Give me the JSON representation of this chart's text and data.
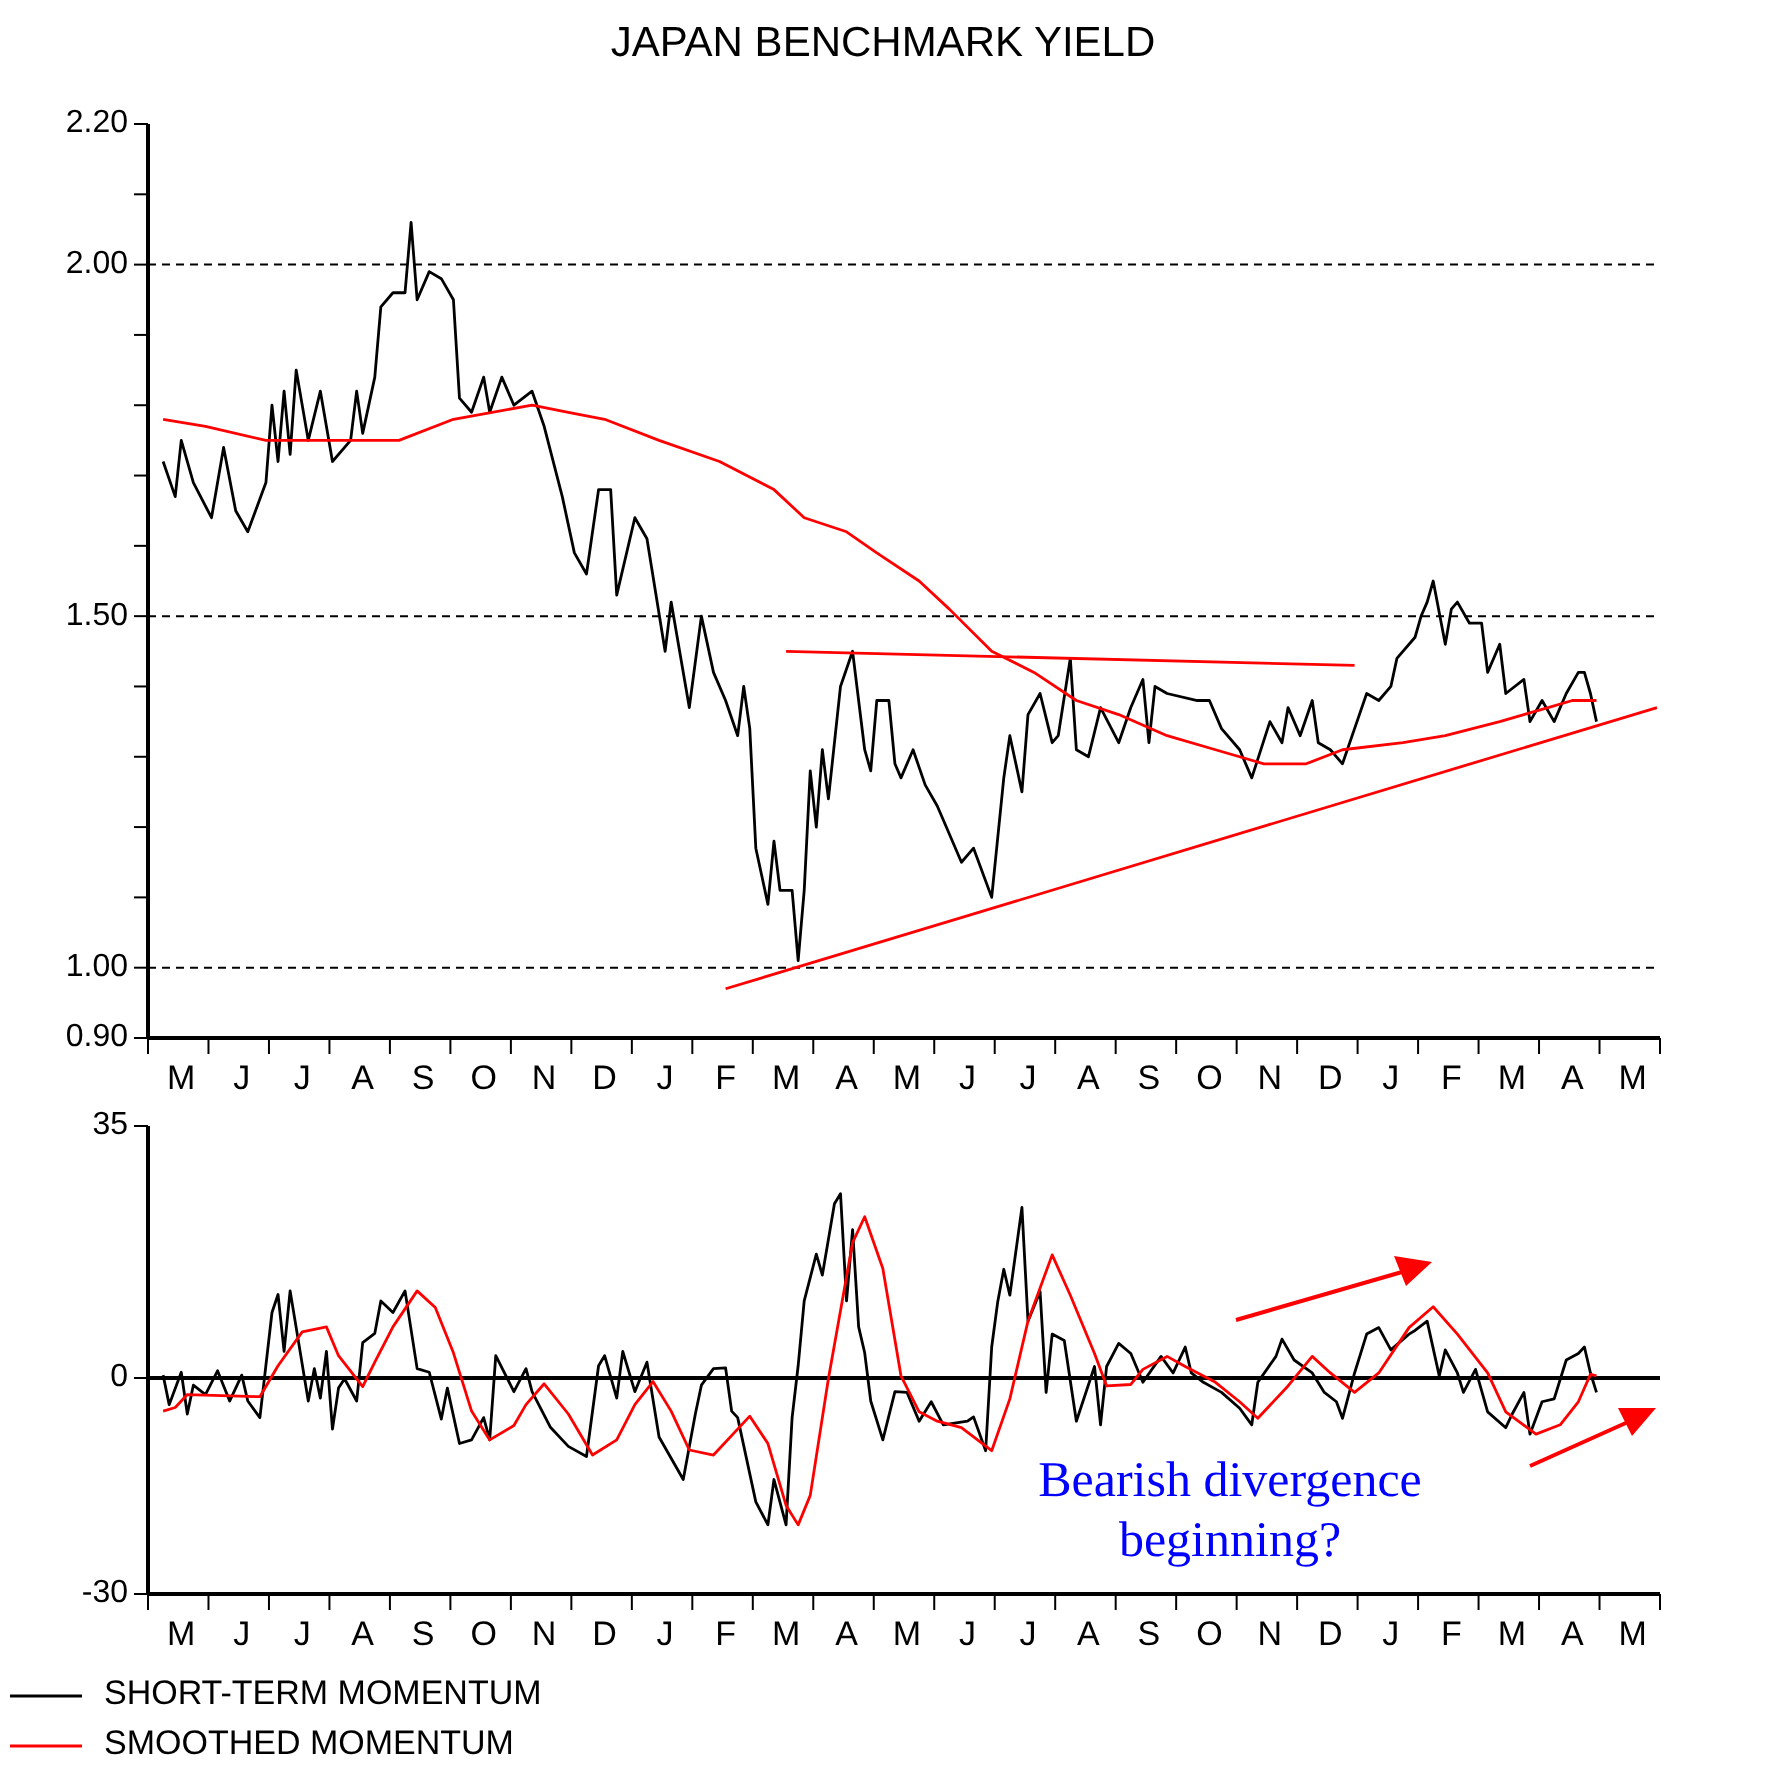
{
  "chart_data": [
    {
      "type": "line",
      "title": "JAPAN BENCHMARK YIELD",
      "marker": "none",
      "categories": [
        null,
        null,
        null,
        null,
        null,
        "M",
        null,
        null,
        null,
        null,
        null,
        null,
        null,
        null,
        null,
        "J",
        null,
        null,
        null,
        null,
        null,
        null,
        null,
        null,
        null,
        "J",
        null,
        null,
        null,
        null,
        null,
        null,
        null,
        null,
        null,
        "A",
        null,
        null,
        null,
        null,
        null,
        null,
        null,
        null,
        null,
        "S",
        null,
        null,
        null,
        null,
        null,
        null,
        null,
        null,
        null,
        "O",
        null,
        null,
        null,
        null,
        null,
        null,
        null,
        null,
        null,
        "N",
        null,
        null,
        null,
        null,
        null,
        null,
        null,
        null,
        null,
        "D",
        null,
        null,
        null,
        null,
        null,
        null,
        null,
        null,
        null,
        "J",
        null,
        null,
        null,
        null,
        null,
        null,
        null,
        null,
        null,
        "F",
        null,
        null,
        null,
        null,
        null,
        null,
        null,
        null,
        null,
        "M",
        null,
        null,
        null,
        null,
        null,
        null,
        null,
        null,
        null,
        "A",
        null,
        null,
        null,
        null,
        null,
        null,
        null,
        null,
        null,
        "M",
        null,
        null,
        null,
        null,
        null,
        null,
        null,
        null,
        null,
        "J",
        null,
        null,
        null,
        null,
        null,
        null,
        null,
        null,
        null,
        "J",
        null,
        null,
        null,
        null,
        null,
        null,
        null,
        null,
        null,
        "A",
        null,
        null,
        null,
        null,
        null,
        null,
        null,
        null,
        null,
        "S",
        null,
        null,
        null,
        null,
        null,
        null,
        null,
        null,
        null,
        "O",
        null,
        null,
        null,
        null,
        null,
        null,
        null,
        null,
        null,
        "N",
        null,
        null,
        null,
        null,
        null,
        null,
        null,
        null,
        null,
        "D",
        null,
        null,
        null,
        null,
        null,
        null,
        null,
        null,
        null,
        "J",
        null,
        null,
        null,
        null,
        null,
        null,
        null,
        null,
        null,
        "F",
        null,
        null,
        null,
        null,
        null,
        null,
        null,
        null,
        null,
        "M",
        null,
        null,
        null,
        null,
        null,
        null,
        null,
        null,
        null,
        "A",
        null,
        null,
        null,
        null,
        null,
        null,
        null,
        null,
        null,
        "M",
        null,
        null,
        null,
        null
      ],
      "ylim": [
        0.9,
        2.2
      ],
      "yticks": [
        {
          "value": 0.9,
          "label": "0.90"
        },
        {
          "value": 1.0,
          "label": "1.00"
        },
        {
          "value": 1.1,
          "label": null
        },
        {
          "value": 1.2,
          "label": null
        },
        {
          "value": 1.3,
          "label": null
        },
        {
          "value": 1.4,
          "label": null
        },
        {
          "value": 1.5,
          "label": "1.50"
        },
        {
          "value": 1.6,
          "label": null
        },
        {
          "value": 1.7,
          "label": null
        },
        {
          "value": 1.8,
          "label": null
        },
        {
          "value": 1.9,
          "label": null
        },
        {
          "value": 2.0,
          "label": "2.00"
        },
        {
          "value": 2.1,
          "label": null
        },
        {
          "value": 2.2,
          "label": "2.20"
        }
      ],
      "ref_lines": [
        {
          "axis": "y",
          "value": 1.0,
          "color": "#000000",
          "line_style": "dashed"
        },
        {
          "axis": "y",
          "value": 1.5,
          "color": "#000000",
          "line_style": "dashed"
        },
        {
          "axis": "y",
          "value": 2.0,
          "color": "#000000",
          "line_style": "dashed"
        }
      ],
      "series": [
        {
          "color": "#000000",
          "values": [
            null,
            null,
            1.72,
            null,
            1.67,
            1.75,
            null,
            1.69,
            null,
            null,
            1.64,
            null,
            1.74,
            null,
            1.65,
            null,
            1.62,
            null,
            null,
            1.69,
            1.8,
            1.72,
            1.82,
            1.73,
            1.85,
            null,
            1.75,
            null,
            1.82,
            null,
            1.72,
            null,
            null,
            1.75,
            1.82,
            1.76,
            null,
            1.84,
            1.94,
            null,
            1.96,
            null,
            1.96,
            2.06,
            1.95,
            null,
            1.99,
            null,
            1.98,
            null,
            1.95,
            1.81,
            null,
            1.79,
            null,
            1.84,
            1.79,
            null,
            1.84,
            null,
            1.8,
            null,
            null,
            1.82,
            null,
            1.77,
            null,
            null,
            1.67,
            null,
            1.59,
            null,
            1.56,
            null,
            1.68,
            null,
            1.68,
            1.53,
            null,
            null,
            1.64,
            null,
            1.61,
            null,
            null,
            1.45,
            1.52,
            null,
            null,
            1.37,
            null,
            1.5,
            null,
            1.42,
            null,
            1.38,
            null,
            1.33,
            1.4,
            1.34,
            1.17,
            null,
            1.09,
            1.18,
            1.11,
            null,
            1.11,
            1.01,
            1.11,
            1.28,
            1.2,
            1.31,
            1.24,
            null,
            1.4,
            null,
            1.45,
            null,
            1.31,
            1.28,
            1.38,
            null,
            1.38,
            1.29,
            1.27,
            null,
            1.31,
            null,
            1.26,
            null,
            1.23,
            1.21,
            null,
            null,
            1.15,
            null,
            1.17,
            null,
            null,
            1.1,
            null,
            1.27,
            1.33,
            null,
            1.25,
            1.36,
            null,
            1.39,
            null,
            1.32,
            1.33,
            null,
            1.44,
            1.31,
            null,
            1.3,
            null,
            1.37,
            null,
            null,
            1.32,
            null,
            1.37,
            null,
            1.41,
            1.32,
            1.4,
            null,
            1.39,
            null,
            null,
            null,
            null,
            1.38,
            null,
            1.38,
            null,
            1.34,
            null,
            null,
            1.31,
            null,
            1.27,
            null,
            null,
            1.35,
            null,
            1.32,
            1.37,
            null,
            1.33,
            null,
            1.38,
            1.32,
            null,
            1.31,
            null,
            1.29,
            null,
            1.34,
            null,
            1.39,
            null,
            1.38,
            null,
            1.4,
            1.44,
            null,
            null,
            1.47,
            1.5,
            1.52,
            1.55,
            null,
            1.46,
            1.51,
            1.52,
            null,
            1.49,
            null,
            1.49,
            1.42,
            null,
            1.46,
            1.39,
            null,
            null,
            1.41,
            1.35,
            null,
            1.38,
            null,
            1.35,
            null,
            1.39,
            null,
            1.42,
            1.42,
            1.39,
            1.35,
            null,
            null,
            null,
            null,
            null,
            null,
            null,
            null,
            null,
            null
          ]
        },
        {
          "color": "#ff0000",
          "values": [
            null,
            null,
            1.78,
            null,
            null,
            null,
            null,
            null,
            null,
            1.77,
            null,
            null,
            null,
            null,
            null,
            null,
            null,
            null,
            null,
            1.75,
            null,
            null,
            null,
            null,
            null,
            1.75,
            null,
            null,
            null,
            null,
            null,
            null,
            null,
            null,
            null,
            null,
            null,
            null,
            null,
            null,
            null,
            1.75,
            null,
            null,
            null,
            null,
            null,
            null,
            null,
            null,
            1.78,
            null,
            null,
            null,
            null,
            null,
            null,
            null,
            null,
            null,
            null,
            null,
            null,
            1.8,
            null,
            null,
            null,
            null,
            null,
            1.79,
            null,
            null,
            null,
            null,
            null,
            1.78,
            null,
            null,
            null,
            null,
            null,
            null,
            null,
            null,
            1.75,
            null,
            null,
            null,
            null,
            null,
            null,
            null,
            null,
            null,
            1.72,
            null,
            null,
            null,
            null,
            null,
            null,
            null,
            null,
            1.68,
            null,
            null,
            null,
            null,
            1.64,
            null,
            null,
            null,
            null,
            null,
            null,
            1.62,
            null,
            null,
            null,
            null,
            1.59,
            null,
            null,
            null,
            null,
            null,
            null,
            1.55,
            null,
            null,
            null,
            null,
            1.51,
            null,
            null,
            null,
            null,
            null,
            null,
            1.45,
            null,
            null,
            null,
            null,
            null,
            null,
            1.42,
            null,
            null,
            null,
            null,
            null,
            null,
            1.38,
            null,
            null,
            null,
            null,
            null,
            null,
            1.36,
            null,
            null,
            null,
            null,
            null,
            null,
            null,
            1.33,
            null,
            null,
            null,
            null,
            null,
            null,
            null,
            1.31,
            null,
            null,
            null,
            null,
            null,
            null,
            null,
            1.29,
            null,
            null,
            null,
            null,
            null,
            null,
            1.29,
            null,
            null,
            null,
            null,
            null,
            1.31,
            null,
            null,
            null,
            null,
            null,
            null,
            null,
            null,
            null,
            1.32,
            null,
            null,
            null,
            null,
            null,
            null,
            1.33,
            null,
            null,
            null,
            null,
            null,
            null,
            null,
            null,
            1.35,
            null,
            null,
            null,
            null,
            null,
            null,
            null,
            1.37,
            null,
            null,
            null,
            1.38,
            null,
            null,
            null,
            1.38,
            null,
            null,
            null,
            null,
            null,
            null,
            null,
            null,
            null,
            null
          ]
        },
        {
          "color": "#ff0000",
          "values": [
            null,
            null,
            null,
            null,
            null,
            null,
            null,
            null,
            null,
            null,
            null,
            null,
            null,
            null,
            null,
            null,
            null,
            null,
            null,
            null,
            null,
            null,
            null,
            null,
            null,
            null,
            null,
            null,
            null,
            null,
            null,
            null,
            null,
            null,
            null,
            null,
            null,
            null,
            null,
            null,
            null,
            null,
            null,
            null,
            null,
            null,
            null,
            null,
            null,
            null,
            null,
            null,
            null,
            null,
            null,
            null,
            null,
            null,
            null,
            null,
            null,
            null,
            null,
            null,
            null,
            null,
            null,
            null,
            null,
            null,
            null,
            null,
            null,
            null,
            null,
            null,
            null,
            null,
            null,
            null,
            null,
            null,
            null,
            null,
            null,
            null,
            null,
            null,
            null,
            null,
            null,
            null,
            null,
            null,
            null,
            null,
            null,
            null,
            null,
            null,
            null,
            null,
            null,
            null,
            null,
            1.45,
            null,
            null,
            null,
            null,
            null,
            null,
            null,
            null,
            null,
            null,
            null,
            null,
            null,
            null,
            null,
            null,
            null,
            null,
            null,
            null,
            null,
            null,
            null,
            null,
            null,
            null,
            null,
            null,
            null,
            null,
            null,
            null,
            null,
            null,
            null,
            null,
            null,
            null,
            null,
            null,
            null,
            null,
            null,
            null,
            null,
            null,
            null,
            null,
            null,
            null,
            null,
            null,
            null,
            null,
            null,
            null,
            null,
            null,
            null,
            null,
            null,
            null,
            null,
            null,
            null,
            null,
            null,
            null,
            null,
            null,
            null,
            null,
            null,
            null,
            null,
            null,
            null,
            null,
            null,
            null,
            null,
            null,
            null,
            null,
            null,
            null,
            null,
            null,
            null,
            null,
            null,
            null,
            null,
            1.43,
            null,
            null,
            null,
            null,
            null,
            null,
            null,
            null,
            null,
            null,
            null,
            null,
            null,
            null,
            null,
            null,
            null,
            null,
            null,
            null,
            null,
            null,
            null,
            null,
            null,
            null,
            null,
            null,
            null,
            null,
            null,
            null,
            null,
            null,
            null,
            null,
            null,
            null,
            null,
            null,
            null,
            null,
            null,
            null,
            null,
            null,
            null,
            null,
            null,
            null
          ]
        },
        {
          "color": "#ff0000",
          "values": [
            null,
            null,
            null,
            null,
            null,
            null,
            null,
            null,
            null,
            null,
            null,
            null,
            null,
            null,
            null,
            null,
            null,
            null,
            null,
            null,
            null,
            null,
            null,
            null,
            null,
            null,
            null,
            null,
            null,
            null,
            null,
            null,
            null,
            null,
            null,
            null,
            null,
            null,
            null,
            null,
            null,
            null,
            null,
            null,
            null,
            null,
            null,
            null,
            null,
            null,
            null,
            null,
            null,
            null,
            null,
            null,
            null,
            null,
            null,
            null,
            null,
            null,
            null,
            null,
            null,
            null,
            null,
            null,
            null,
            null,
            null,
            null,
            null,
            null,
            null,
            null,
            null,
            null,
            null,
            null,
            null,
            null,
            null,
            null,
            null,
            null,
            null,
            null,
            null,
            null,
            null,
            null,
            null,
            null,
            null,
            0.97,
            null,
            null,
            null,
            null,
            null,
            null,
            null,
            null,
            null,
            null,
            null,
            null,
            null,
            null,
            null,
            null,
            null,
            null,
            null,
            null,
            null,
            null,
            null,
            null,
            null,
            null,
            null,
            null,
            null,
            null,
            null,
            null,
            null,
            null,
            null,
            null,
            null,
            null,
            null,
            null,
            null,
            null,
            null,
            null,
            null,
            null,
            null,
            null,
            null,
            null,
            null,
            null,
            null,
            null,
            null,
            null,
            null,
            null,
            null,
            null,
            null,
            null,
            null,
            null,
            null,
            null,
            null,
            null,
            null,
            null,
            null,
            null,
            null,
            null,
            null,
            null,
            null,
            null,
            null,
            null,
            null,
            null,
            null,
            null,
            null,
            null,
            null,
            null,
            null,
            null,
            null,
            null,
            null,
            null,
            null,
            null,
            null,
            null,
            null,
            null,
            null,
            null,
            null,
            null,
            null,
            null,
            null,
            null,
            null,
            null,
            null,
            null,
            null,
            null,
            null,
            null,
            null,
            null,
            null,
            null,
            null,
            null,
            null,
            null,
            null,
            null,
            null,
            null,
            null,
            null,
            null,
            null,
            null,
            null,
            null,
            null,
            null,
            null,
            null,
            null,
            null,
            null,
            null,
            null,
            null,
            null,
            null,
            null,
            null,
            null,
            null,
            null,
            null,
            1.37
          ]
        }
      ]
    },
    {
      "type": "line",
      "marker": "none",
      "legend": "bottom left",
      "categories": [
        null,
        null,
        null,
        null,
        null,
        "M",
        null,
        null,
        null,
        null,
        null,
        null,
        null,
        null,
        null,
        "J",
        null,
        null,
        null,
        null,
        null,
        null,
        null,
        null,
        null,
        "J",
        null,
        null,
        null,
        null,
        null,
        null,
        null,
        null,
        null,
        "A",
        null,
        null,
        null,
        null,
        null,
        null,
        null,
        null,
        null,
        "S",
        null,
        null,
        null,
        null,
        null,
        null,
        null,
        null,
        null,
        "O",
        null,
        null,
        null,
        null,
        null,
        null,
        null,
        null,
        null,
        "N",
        null,
        null,
        null,
        null,
        null,
        null,
        null,
        null,
        null,
        "D",
        null,
        null,
        null,
        null,
        null,
        null,
        null,
        null,
        null,
        "J",
        null,
        null,
        null,
        null,
        null,
        null,
        null,
        null,
        null,
        "F",
        null,
        null,
        null,
        null,
        null,
        null,
        null,
        null,
        null,
        "M",
        null,
        null,
        null,
        null,
        null,
        null,
        null,
        null,
        null,
        "A",
        null,
        null,
        null,
        null,
        null,
        null,
        null,
        null,
        null,
        "M",
        null,
        null,
        null,
        null,
        null,
        null,
        null,
        null,
        null,
        "J",
        null,
        null,
        null,
        null,
        null,
        null,
        null,
        null,
        null,
        "J",
        null,
        null,
        null,
        null,
        null,
        null,
        null,
        null,
        null,
        "A",
        null,
        null,
        null,
        null,
        null,
        null,
        null,
        null,
        null,
        "S",
        null,
        null,
        null,
        null,
        null,
        null,
        null,
        null,
        null,
        "O",
        null,
        null,
        null,
        null,
        null,
        null,
        null,
        null,
        null,
        "N",
        null,
        null,
        null,
        null,
        null,
        null,
        null,
        null,
        null,
        "D",
        null,
        null,
        null,
        null,
        null,
        null,
        null,
        null,
        null,
        "J",
        null,
        null,
        null,
        null,
        null,
        null,
        null,
        null,
        null,
        "F",
        null,
        null,
        null,
        null,
        null,
        null,
        null,
        null,
        null,
        "M",
        null,
        null,
        null,
        null,
        null,
        null,
        null,
        null,
        null,
        "A",
        null,
        null,
        null,
        null,
        null,
        null,
        null,
        null,
        null,
        "M",
        null,
        null,
        null,
        null
      ],
      "ylim": [
        -30,
        35
      ],
      "yticks": [
        -30,
        0,
        35
      ],
      "ref_lines": [
        {
          "axis": "y",
          "value": 0,
          "color": "#000000",
          "line_style": "solid"
        }
      ],
      "annotations": [
        "Bearish divergence beginning?"
      ],
      "series": [
        {
          "name": "SHORT-TERM MOMENTUM",
          "color": "#000000",
          "values": [
            null,
            null,
            0.4,
            -3.7,
            null,
            0.8,
            -5.0,
            -1.0,
            null,
            -2.3,
            null,
            1.0,
            null,
            -3.2,
            null,
            0.4,
            -3.2,
            null,
            -5.5,
            null,
            9.1,
            11.6,
            3.7,
            12.1,
            null,
            null,
            -3.2,
            1.3,
            -2.8,
            3.7,
            -7.1,
            -1.4,
            -0.1,
            null,
            -3.2,
            4.9,
            null,
            6.2,
            10.7,
            null,
            9.1,
            null,
            12.1,
            null,
            1.3,
            null,
            0.8,
            null,
            -5.7,
            -1.4,
            null,
            -9.1,
            null,
            -8.6,
            null,
            -5.5,
            -8.6,
            3.1,
            null,
            null,
            -1.9,
            null,
            1.3,
            -1.9,
            null,
            null,
            -6.8,
            null,
            null,
            -9.5,
            null,
            null,
            -10.9,
            null,
            1.7,
            3.1,
            null,
            -2.8,
            3.7,
            null,
            -1.9,
            null,
            2.2,
            null,
            -8.2,
            null,
            null,
            null,
            -14.1,
            null,
            -5.0,
            -1.0,
            null,
            1.3,
            null,
            1.4,
            -4.6,
            -5.5,
            null,
            null,
            -17.2,
            null,
            -20.4,
            -14.1,
            null,
            -20.4,
            -5.5,
            1.7,
            10.7,
            null,
            17.2,
            14.3,
            null,
            24.2,
            25.6,
            10.7,
            20.6,
            7.1,
            3.5,
            -3.2,
            null,
            -8.6,
            null,
            -1.9,
            null,
            -2.0,
            null,
            -6.0,
            null,
            -3.3,
            null,
            -6.5,
            null,
            null,
            null,
            -6.0,
            -5.4,
            null,
            -10.1,
            4.3,
            10.6,
            15.1,
            11.5,
            null,
            23.7,
            7.9,
            null,
            12.0,
            -2.0,
            6.1,
            null,
            5.2,
            null,
            -6.0,
            null,
            null,
            1.6,
            -6.5,
            1.6,
            null,
            4.8,
            null,
            3.4,
            null,
            -0.6,
            null,
            null,
            3.0,
            null,
            0.7,
            null,
            4.3,
            0.7,
            null,
            -0.6,
            null,
            null,
            -2.0,
            null,
            null,
            -4.2,
            null,
            -6.5,
            -0.6,
            null,
            null,
            3.0,
            5.4,
            null,
            2.5,
            null,
            null,
            0.7,
            null,
            -2.0,
            null,
            -3.3,
            -5.6,
            null,
            0.7,
            null,
            6.1,
            null,
            7.0,
            null,
            3.9,
            null,
            null,
            6.1,
            6.6,
            null,
            7.9,
            null,
            0.3,
            3.9,
            null,
            0.7,
            -2.0,
            null,
            1.2,
            null,
            -4.7,
            null,
            null,
            -6.9,
            -5.1,
            null,
            -2.0,
            -7.8,
            null,
            -3.3,
            null,
            -2.9,
            null,
            2.5,
            null,
            3.4,
            4.3,
            0.7,
            -2.0,
            null,
            null,
            null,
            null,
            null,
            null,
            null,
            null,
            null,
            null
          ]
        },
        {
          "name": "SMOOTHED MOMENTUM",
          "color": "#ff0000",
          "values": [
            null,
            null,
            -4.6,
            null,
            -4.1,
            null,
            -2.3,
            null,
            null,
            null,
            null,
            null,
            null,
            null,
            null,
            null,
            null,
            null,
            -2.6,
            null,
            null,
            1.7,
            null,
            null,
            null,
            6.4,
            null,
            null,
            null,
            7.1,
            null,
            3.1,
            null,
            null,
            null,
            -1.2,
            null,
            2.2,
            null,
            null,
            7.1,
            null,
            null,
            null,
            12.1,
            null,
            null,
            9.8,
            null,
            null,
            3.5,
            null,
            null,
            -4.6,
            null,
            null,
            -8.6,
            null,
            null,
            null,
            -6.6,
            null,
            -3.7,
            null,
            null,
            -0.8,
            null,
            null,
            null,
            -5.0,
            null,
            null,
            null,
            -10.7,
            null,
            null,
            null,
            -8.6,
            null,
            null,
            -3.7,
            null,
            null,
            -0.5,
            null,
            null,
            -4.6,
            null,
            null,
            -10.0,
            null,
            null,
            null,
            -10.7,
            null,
            null,
            null,
            null,
            null,
            -5.3,
            null,
            null,
            -9.1,
            null,
            null,
            -17.7,
            null,
            -20.4,
            null,
            -16.3,
            null,
            null,
            -0.1,
            null,
            null,
            null,
            18.8,
            null,
            22.4,
            null,
            null,
            15.2,
            null,
            null,
            0.3,
            null,
            null,
            -4.7,
            null,
            null,
            -6.0,
            null,
            null,
            null,
            -6.9,
            null,
            null,
            null,
            null,
            -10.1,
            null,
            null,
            -2.9,
            null,
            null,
            7.9,
            null,
            null,
            null,
            17.1,
            null,
            null,
            11.5,
            null,
            null,
            null,
            3.4,
            null,
            -1.1,
            null,
            null,
            null,
            -0.9,
            null,
            1.2,
            null,
            null,
            null,
            3.0,
            null,
            null,
            1.6,
            null,
            null,
            null,
            null,
            -0.6,
            null,
            null,
            null,
            -3.3,
            null,
            null,
            -5.6,
            null,
            null,
            null,
            null,
            -1.1,
            null,
            null,
            null,
            3.0,
            null,
            null,
            0.7,
            null,
            null,
            null,
            -2.0,
            null,
            null,
            null,
            0.7,
            null,
            null,
            null,
            null,
            7.0,
            null,
            null,
            null,
            9.9,
            null,
            null,
            null,
            6.1,
            null,
            null,
            null,
            null,
            0.7,
            null,
            null,
            -4.7,
            null,
            null,
            null,
            null,
            -7.8,
            null,
            null,
            null,
            -6.5,
            null,
            null,
            -3.3,
            null,
            0.5,
            0.3,
            null,
            null,
            null,
            null,
            null,
            null,
            null,
            null,
            null,
            null
          ]
        }
      ]
    }
  ]
}
